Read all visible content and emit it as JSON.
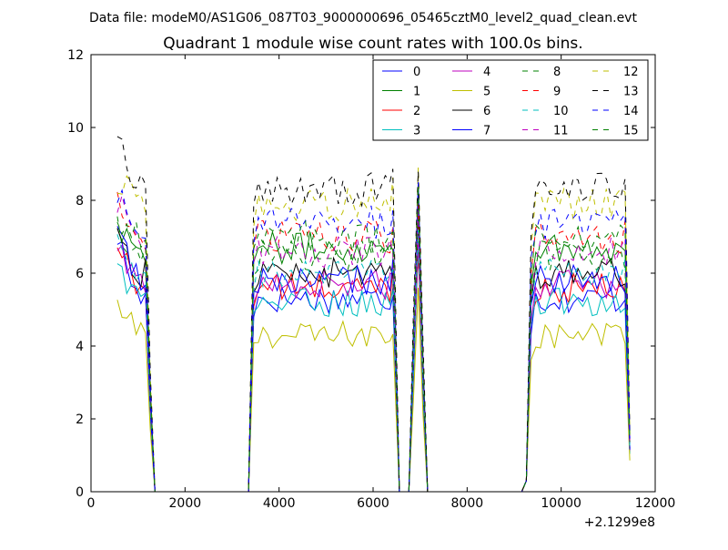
{
  "header": {
    "file_label": "Data file: modeM0/AS1G06_087T03_9000000696_05465cztM0_level2_quad_clean.evt"
  },
  "chart_data": {
    "type": "line",
    "title": "Quadrant 1 module wise count rates with 100.0s bins.",
    "xlabel": "",
    "ylabel": "",
    "x_offset_label": "+2.1299e8",
    "xlim": [
      0,
      12000
    ],
    "ylim": [
      0,
      12
    ],
    "x_ticks": [
      0,
      2000,
      4000,
      6000,
      8000,
      10000,
      12000
    ],
    "y_ticks": [
      0,
      2,
      4,
      6,
      8,
      10,
      12
    ],
    "x_tick_labels": [
      "0",
      "2000",
      "4000",
      "6000",
      "8000",
      "10000",
      "12000"
    ],
    "y_tick_labels": [
      "0",
      "2",
      "4",
      "6",
      "8",
      "10",
      "12"
    ],
    "grid": false,
    "legend_position": "top-right",
    "legend_columns": 4,
    "segments": [
      {
        "x_start": 560,
        "x_end": 1160,
        "ramp_down_to": 1360
      },
      {
        "x_start": 3360,
        "x_end": 6360,
        "ramp_up_from": 3360,
        "ramp_down_to": 6560
      },
      {
        "x_start": 6960,
        "x_end": 6960,
        "ramp_up_from": 6760,
        "ramp_down_to": 7160
      },
      {
        "x_start": 9360,
        "x_end": 11360,
        "ramp_up_from": 9160,
        "ramp_down_to": 11460
      }
    ],
    "series": [
      {
        "name": "0",
        "color": "#0000ff",
        "dash": "solid",
        "level": 5.3,
        "first": 7.0,
        "peak": 6.8,
        "last": 5.8
      },
      {
        "name": "1",
        "color": "#008000",
        "dash": "solid",
        "level": 6.7,
        "first": 7.4,
        "peak": 7.5,
        "last": 6.7
      },
      {
        "name": "2",
        "color": "#ff0000",
        "dash": "solid",
        "level": 5.6,
        "first": 6.8,
        "peak": 6.6,
        "last": 5.5
      },
      {
        "name": "3",
        "color": "#00bfbf",
        "dash": "solid",
        "level": 5.2,
        "first": 6.3,
        "peak": 6.9,
        "last": 5.2
      },
      {
        "name": "4",
        "color": "#bf00bf",
        "dash": "solid",
        "level": 5.7,
        "first": 6.6,
        "peak": 7.0,
        "last": 5.7
      },
      {
        "name": "5",
        "color": "#bfbf00",
        "dash": "solid",
        "level": 4.3,
        "first": 5.2,
        "peak": 5.6,
        "last": 4.3
      },
      {
        "name": "6",
        "color": "#000000",
        "dash": "solid",
        "level": 6.0,
        "first": 7.1,
        "peak": 7.6,
        "last": 6.0
      },
      {
        "name": "7",
        "color": "#0000ff",
        "dash": "solid",
        "level": 5.8,
        "first": 7.1,
        "peak": 8.2,
        "last": 5.8
      },
      {
        "name": "8",
        "color": "#008000",
        "dash": "dashed",
        "level": 6.5,
        "first": 7.3,
        "peak": 7.8,
        "last": 6.5
      },
      {
        "name": "9",
        "color": "#ff0000",
        "dash": "dashed",
        "level": 7.0,
        "first": 7.9,
        "peak": 8.0,
        "last": 7.1
      },
      {
        "name": "10",
        "color": "#00bfbf",
        "dash": "dashed",
        "level": 6.0,
        "first": 6.7,
        "peak": 7.2,
        "last": 5.7
      },
      {
        "name": "11",
        "color": "#bf00bf",
        "dash": "dashed",
        "level": 6.6,
        "first": 8.1,
        "peak": 7.8,
        "last": 6.5
      },
      {
        "name": "12",
        "color": "#bfbf00",
        "dash": "dashed",
        "level": 7.9,
        "first": 8.6,
        "peak": 8.9,
        "last": 8.0
      },
      {
        "name": "13",
        "color": "#000000",
        "dash": "dashed",
        "level": 8.3,
        "first": 10.1,
        "peak": 8.8,
        "last": 8.3
      },
      {
        "name": "14",
        "color": "#0000ff",
        "dash": "dashed",
        "level": 7.4,
        "first": 8.2,
        "peak": 8.5,
        "last": 7.3
      },
      {
        "name": "15",
        "color": "#008000",
        "dash": "dashed",
        "level": 7.0,
        "first": 7.6,
        "peak": 8.4,
        "last": 6.9
      }
    ]
  }
}
